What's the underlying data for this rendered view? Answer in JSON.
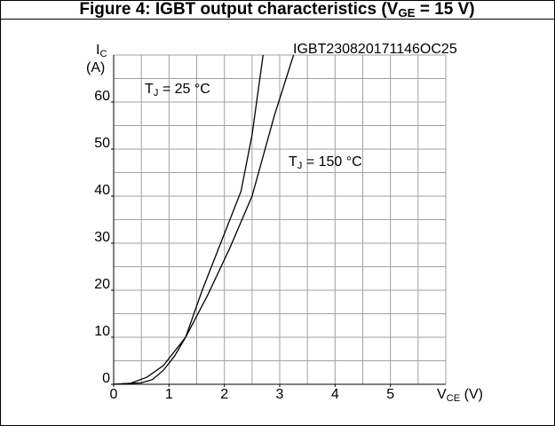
{
  "chart_data": {
    "type": "line",
    "title": [
      "Figure 4: IGBT output characteristics (V",
      "GE",
      " = 15 V)"
    ],
    "x_label": [
      "V",
      "CE",
      " (V)"
    ],
    "y_label": [
      "I",
      "C",
      "(A)"
    ],
    "code": "IGBT230820171146OC25",
    "series": [
      {
        "name": [
          "T",
          "J",
          " = 25 °C"
        ],
        "color": "#000000",
        "x": [
          0,
          0.5,
          0.7,
          0.9,
          1.1,
          1.3,
          1.6,
          2.0,
          2.3,
          2.5,
          2.7
        ],
        "values": [
          0,
          0.3,
          1,
          3,
          6,
          10,
          20,
          32,
          41,
          53,
          70
        ]
      },
      {
        "name": [
          "T",
          "J",
          " = 150 °C"
        ],
        "color": "#000000",
        "x": [
          0,
          0.3,
          0.6,
          0.9,
          1.1,
          1.3,
          1.7,
          2.1,
          2.5,
          2.9,
          3.25
        ],
        "values": [
          0,
          0.2,
          1.5,
          4,
          7,
          10,
          19,
          29,
          40,
          57,
          70
        ]
      }
    ],
    "xlim": [
      0,
      6
    ],
    "ylim": [
      0,
      70
    ],
    "xticks": [
      0,
      1,
      2,
      3,
      4,
      5
    ],
    "yticks": [
      0,
      10,
      20,
      30,
      40,
      50,
      60
    ],
    "xgrid": [
      0,
      0.5,
      1,
      1.5,
      2,
      2.5,
      3,
      3.5,
      4,
      4.5,
      5,
      5.5,
      6
    ],
    "ygrid": [
      0,
      5,
      10,
      15,
      20,
      25,
      30,
      35,
      40,
      45,
      50,
      55,
      60,
      65,
      70
    ],
    "grid": true
  }
}
